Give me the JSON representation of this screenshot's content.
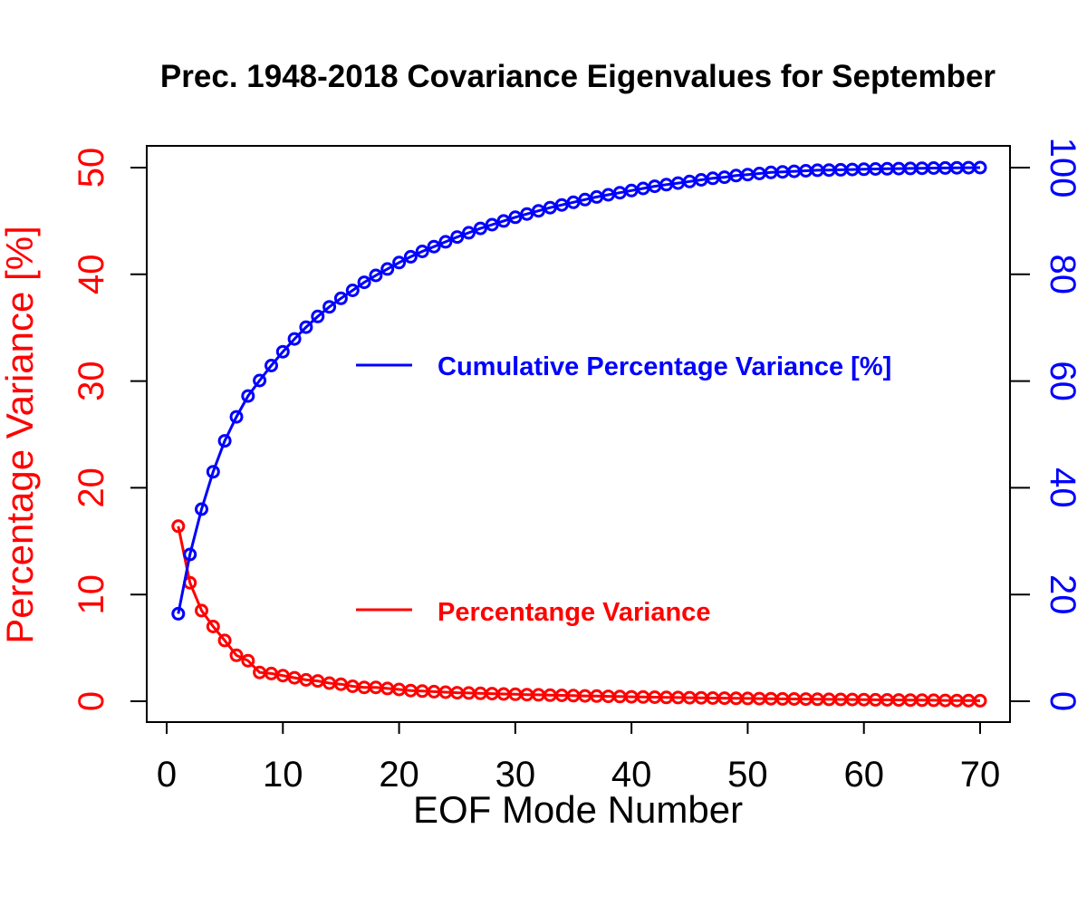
{
  "chart_data": {
    "type": "line",
    "title": "Prec. 1948-2018 Covariance Eigenvalues for September",
    "xlabel": "EOF Mode Number",
    "ylabel_left": "Percentage Variance [%]",
    "ylabel_right": "",
    "xlim": [
      0,
      70
    ],
    "ylim_left": [
      0,
      50
    ],
    "ylim_right": [
      0,
      100
    ],
    "x_ticks": [
      "0",
      "10",
      "20",
      "30",
      "40",
      "50",
      "60",
      "70"
    ],
    "y_left_ticks": [
      "0",
      "10",
      "20",
      "30",
      "40",
      "50"
    ],
    "y_right_ticks": [
      "0",
      "20",
      "40",
      "60",
      "80",
      "100"
    ],
    "x": [
      1,
      2,
      3,
      4,
      5,
      6,
      7,
      8,
      9,
      10,
      11,
      12,
      13,
      14,
      15,
      16,
      17,
      18,
      19,
      20,
      21,
      22,
      23,
      24,
      25,
      26,
      27,
      28,
      29,
      30,
      31,
      32,
      33,
      34,
      35,
      36,
      37,
      38,
      39,
      40,
      41,
      42,
      43,
      44,
      45,
      46,
      47,
      48,
      49,
      50,
      51,
      52,
      53,
      54,
      55,
      56,
      57,
      58,
      59,
      60,
      61,
      62,
      63,
      64,
      65,
      66,
      67,
      68,
      69,
      70
    ],
    "series": [
      {
        "name": "Percentange Variance",
        "axis": "left",
        "color": "#ff0000",
        "values": [
          16.4,
          11.1,
          8.5,
          7.0,
          5.7,
          4.3,
          3.8,
          2.7,
          2.6,
          2.4,
          2.2,
          2.0,
          1.9,
          1.7,
          1.6,
          1.4,
          1.3,
          1.3,
          1.2,
          1.1,
          1.0,
          0.95,
          0.9,
          0.85,
          0.8,
          0.77,
          0.74,
          0.71,
          0.68,
          0.65,
          0.62,
          0.6,
          0.57,
          0.55,
          0.53,
          0.5,
          0.48,
          0.46,
          0.44,
          0.42,
          0.4,
          0.38,
          0.36,
          0.35,
          0.33,
          0.32,
          0.3,
          0.29,
          0.27,
          0.26,
          0.25,
          0.24,
          0.22,
          0.21,
          0.2,
          0.19,
          0.18,
          0.17,
          0.16,
          0.15,
          0.14,
          0.13,
          0.12,
          0.11,
          0.1,
          0.09,
          0.08,
          0.07,
          0.06,
          0.05
        ]
      },
      {
        "name": "Cumulative Percentage Variance [%]",
        "axis": "right",
        "color": "#0000ff",
        "values": [
          16.4,
          27.5,
          36.0,
          43.0,
          48.8,
          53.3,
          57.2,
          60.1,
          62.9,
          65.5,
          67.9,
          70.1,
          72.1,
          73.9,
          75.5,
          77.0,
          78.5,
          79.8,
          81.0,
          82.2,
          83.3,
          84.3,
          85.2,
          86.1,
          87.0,
          87.8,
          88.6,
          89.3,
          90.0,
          90.7,
          91.3,
          91.9,
          92.5,
          93.0,
          93.5,
          94.0,
          94.5,
          94.9,
          95.3,
          95.7,
          96.1,
          96.5,
          96.8,
          97.1,
          97.4,
          97.7,
          98.0,
          98.2,
          98.5,
          98.7,
          98.9,
          99.1,
          99.2,
          99.3,
          99.4,
          99.5,
          99.55,
          99.6,
          99.65,
          99.7,
          99.74,
          99.78,
          99.82,
          99.85,
          99.88,
          99.91,
          99.94,
          99.96,
          99.98,
          100.0
        ]
      }
    ],
    "legend": [
      {
        "label": "Cumulative Percentage Variance [%]",
        "color": "#0000ff"
      },
      {
        "label": "Percentange Variance",
        "color": "#ff0000"
      }
    ],
    "grid": false
  }
}
